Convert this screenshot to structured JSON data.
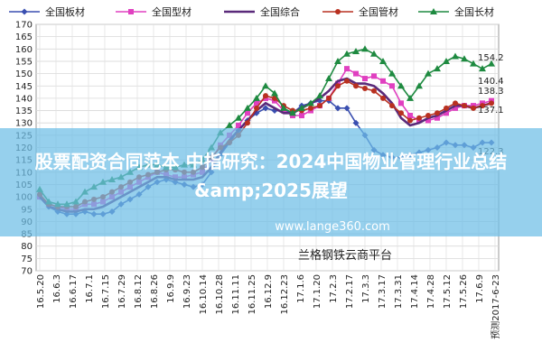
{
  "chart_data": {
    "type": "line",
    "title": "",
    "xlabel": "",
    "ylabel": "",
    "ylim": [
      70,
      170
    ],
    "yticks": [
      70,
      75,
      80,
      85,
      90,
      95,
      100,
      105,
      110,
      115,
      120,
      125,
      130,
      135,
      140,
      145,
      150,
      155,
      160,
      165,
      170
    ],
    "grid": true,
    "legend_position": "top",
    "x_tick_labels": [
      "16.5.20",
      "16.6.3",
      "16.6.17",
      "16.7.1",
      "16.7.15",
      "16.7.29",
      "16.8.12",
      "16.8.26",
      "16.9.9",
      "16.9.23",
      "16.10.14",
      "16.10.28",
      "16.11.11",
      "16.11.25",
      "16.12.9",
      "16.12.23",
      "17.1.6",
      "17.1.20",
      "17.2.3",
      "17.2.17",
      "17.3.3",
      "17.3.17",
      "17.3.31",
      "17.4.14",
      "17.4.28",
      "17.5.12",
      "17.5.26",
      "17.6.9",
      "预测2017-6-23"
    ],
    "series": [
      {
        "name": "全国板材",
        "color": "#3a4fb0",
        "marker": "diamond",
        "values": [
          100,
          96,
          94,
          93,
          93,
          94,
          93,
          93,
          94,
          97,
          99,
          101,
          104,
          106,
          107,
          106,
          105,
          104,
          105,
          110,
          117,
          122,
          127,
          131,
          134,
          136,
          135,
          135,
          134,
          137,
          138,
          139,
          139,
          136,
          136,
          130,
          125,
          119,
          117,
          116,
          116,
          117,
          118,
          119,
          120,
          122,
          121,
          121,
          120,
          122,
          122
        ]
      },
      {
        "name": "全国型材",
        "color": "#e040c0",
        "marker": "square",
        "values": [
          100,
          97,
          96,
          95,
          95,
          97,
          97,
          98,
          100,
          102,
          104,
          106,
          108,
          110,
          109,
          108,
          108,
          109,
          110,
          115,
          121,
          125,
          129,
          134,
          138,
          140,
          139,
          135,
          133,
          133,
          135,
          137,
          140,
          146,
          152,
          150,
          148,
          149,
          147,
          145,
          138,
          133,
          131,
          131,
          132,
          134,
          136,
          137,
          137,
          138,
          139
        ]
      },
      {
        "name": "全国综合",
        "color": "#5a2a7a",
        "marker": "none",
        "values": [
          100,
          96,
          95,
          94,
          94,
          95,
          95,
          96,
          98,
          100,
          102,
          104,
          106,
          108,
          108,
          107,
          107,
          107,
          108,
          112,
          118,
          123,
          127,
          131,
          135,
          138,
          136,
          134,
          134,
          136,
          138,
          140,
          143,
          147,
          148,
          146,
          146,
          145,
          142,
          138,
          132,
          129,
          130,
          132,
          133,
          135,
          137,
          137,
          136,
          137,
          138
        ]
      },
      {
        "name": "全国管材",
        "color": "#b83020",
        "marker": "circle",
        "values": [
          101,
          97,
          96,
          96,
          96,
          98,
          99,
          100,
          102,
          104,
          106,
          108,
          109,
          110,
          111,
          111,
          110,
          110,
          112,
          116,
          120,
          122,
          125,
          130,
          136,
          141,
          140,
          137,
          135,
          135,
          136,
          137,
          140,
          145,
          147,
          145,
          144,
          143,
          140,
          137,
          134,
          131,
          132,
          133,
          134,
          136,
          138,
          137,
          136,
          137,
          138
        ]
      },
      {
        "name": "全国长材",
        "color": "#1e8a40",
        "marker": "triangle",
        "values": [
          103,
          98,
          97,
          97,
          98,
          102,
          104,
          106,
          107,
          108,
          110,
          112,
          113,
          113,
          112,
          112,
          113,
          113,
          115,
          120,
          126,
          129,
          132,
          136,
          140,
          145,
          142,
          136,
          134,
          136,
          138,
          141,
          148,
          155,
          158,
          159,
          160,
          158,
          155,
          150,
          145,
          140,
          145,
          150,
          152,
          155,
          157,
          156,
          154,
          152,
          154
        ]
      }
    ],
    "end_labels": [
      "154.2",
      "140.4",
      "138.3",
      "137.1",
      "122.3"
    ]
  },
  "overlay": {
    "title": "股票配资合同范本 中指研究：2024中国物业管理行业总结&amp;2025展望",
    "site": "www.lange360.com",
    "platform": "兰格钢铁云商平台"
  }
}
